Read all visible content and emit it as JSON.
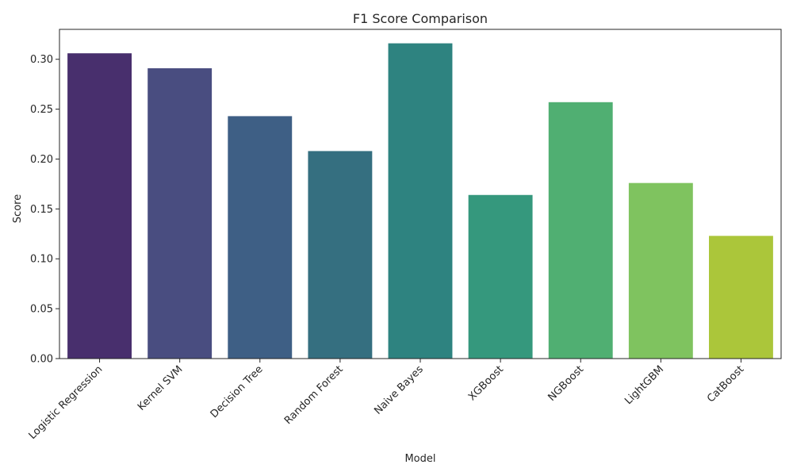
{
  "chart_data": {
    "type": "bar",
    "title": "F1 Score Comparison",
    "xlabel": "Model",
    "ylabel": "Score",
    "categories": [
      "Logistic Regression",
      "Kernel SVM",
      "Decision Tree",
      "Random Forest",
      "Naive Bayes",
      "XGBoost",
      "NGBoost",
      "LightGBM",
      "CatBoost"
    ],
    "values": [
      0.306,
      0.291,
      0.243,
      0.208,
      0.316,
      0.164,
      0.257,
      0.176,
      0.123
    ],
    "colors": [
      "#482f6d",
      "#494d80",
      "#3e5f85",
      "#356f80",
      "#2e8380",
      "#35987d",
      "#50af72",
      "#7fc35f",
      "#abc63a"
    ],
    "ylim": [
      0,
      0.33
    ],
    "yticks": [
      "0.00",
      "0.05",
      "0.10",
      "0.15",
      "0.20",
      "0.25",
      "0.30"
    ],
    "ytick_values": [
      0,
      0.05,
      0.1,
      0.15,
      0.2,
      0.25,
      0.3
    ],
    "grid": false,
    "legend": "none"
  }
}
